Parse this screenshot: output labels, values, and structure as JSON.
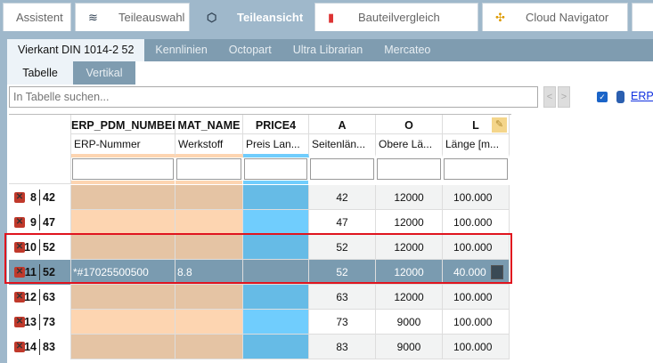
{
  "top_tabs": [
    {
      "label": "Assistent",
      "icon": "none"
    },
    {
      "label": "Teileauswahl",
      "icon": "stack-icon"
    },
    {
      "label": "Teileansicht",
      "icon": "cubes-icon",
      "active": true
    },
    {
      "label": "Bauteilvergleich",
      "icon": "compare-icon"
    },
    {
      "label": "Cloud Navigator",
      "icon": "network-icon"
    }
  ],
  "sub_tabs": [
    {
      "label": "Vierkant DIN 1014-2 52",
      "active": true
    },
    {
      "label": "Kennlinien"
    },
    {
      "label": "Octopart"
    },
    {
      "label": "Ultra Librarian"
    },
    {
      "label": "Mercateo"
    }
  ],
  "view_tabs": [
    {
      "label": "Tabelle",
      "active": true
    },
    {
      "label": "Vertikal"
    }
  ],
  "search": {
    "placeholder": "In Tabelle suchen..."
  },
  "nav": {
    "prev": "<",
    "next": ">"
  },
  "erp_link": "ERP-",
  "colors": {
    "erp_odd": "#e5c4a4",
    "erp_even": "#fdd5b1",
    "price_odd": "#66bbe6",
    "price_even": "#70cdfd",
    "selected": "#7a9bb0",
    "highlight": "#e0141e"
  },
  "columns": [
    {
      "key": "ERP_PDM_NUMBER",
      "label": "ERP-Nummer",
      "type": "erp"
    },
    {
      "key": "MAT_NAME",
      "label": "Werkstoff",
      "type": "erp"
    },
    {
      "key": "PRICE4",
      "label": "Preis Lan...",
      "type": "price"
    },
    {
      "key": "A",
      "label": "Seitenlän...",
      "type": "num"
    },
    {
      "key": "O",
      "label": "Obere Lä...",
      "type": "num"
    },
    {
      "key": "L",
      "label": "Länge [m...",
      "type": "num"
    }
  ],
  "rows": [
    {
      "index": "8",
      "id": "42",
      "cells": [
        "",
        "",
        "",
        "42",
        "12000",
        "100.000"
      ]
    },
    {
      "index": "9",
      "id": "47",
      "cells": [
        "",
        "",
        "",
        "47",
        "12000",
        "100.000"
      ]
    },
    {
      "index": "10",
      "id": "52",
      "cells": [
        "",
        "",
        "",
        "52",
        "12000",
        "100.000"
      ],
      "highlighted": true
    },
    {
      "index": "11",
      "id": "52",
      "cells": [
        "*#17025500500",
        "8.8",
        "",
        "52",
        "12000",
        "40.000"
      ],
      "selected": true,
      "highlighted": true,
      "locked": true
    },
    {
      "index": "12",
      "id": "63",
      "cells": [
        "",
        "",
        "",
        "63",
        "12000",
        "100.000"
      ]
    },
    {
      "index": "13",
      "id": "73",
      "cells": [
        "",
        "",
        "",
        "73",
        "9000",
        "100.000"
      ]
    },
    {
      "index": "14",
      "id": "83",
      "cells": [
        "",
        "",
        "",
        "83",
        "9000",
        "100.000"
      ]
    }
  ]
}
